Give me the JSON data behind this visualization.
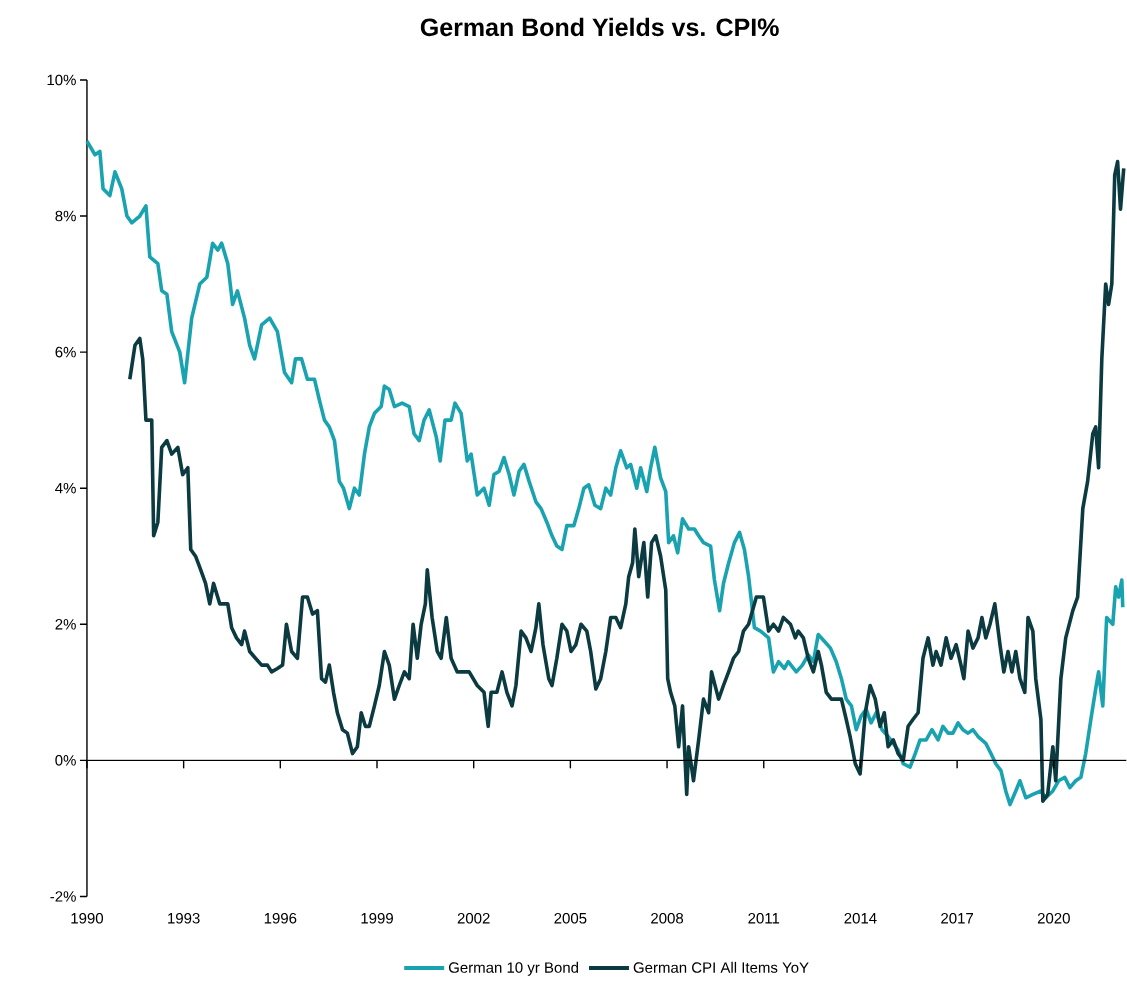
{
  "chart_data": {
    "type": "line",
    "title": "German Bond Yields vs. CPI%",
    "xlim": [
      1990,
      2022.25
    ],
    "ylim": [
      -2,
      10
    ],
    "xticks": [
      1990,
      1993,
      1996,
      1999,
      2002,
      2005,
      2008,
      2011,
      2014,
      2017,
      2020
    ],
    "yticks": [
      {
        "value": -2,
        "label": "-2%"
      },
      {
        "value": 0,
        "label": "0%"
      },
      {
        "value": 2,
        "label": "2%"
      },
      {
        "value": 4,
        "label": "4%"
      },
      {
        "value": 6,
        "label": "6%"
      },
      {
        "value": 8,
        "label": "8%"
      },
      {
        "value": 10,
        "label": "10%"
      }
    ],
    "legend": "bottom",
    "series": [
      {
        "name": "German 10 yr Bond",
        "color": "#19a3b0",
        "x": [
          1990.0,
          1990.25,
          1990.4,
          1990.5,
          1990.71,
          1990.87,
          1991.08,
          1991.24,
          1991.39,
          1991.64,
          1991.83,
          1991.95,
          1992.2,
          1992.32,
          1992.48,
          1992.63,
          1992.88,
          1993.03,
          1993.25,
          1993.5,
          1993.72,
          1993.9,
          1994.06,
          1994.18,
          1994.37,
          1994.52,
          1994.67,
          1994.89,
          1995.05,
          1995.2,
          1995.42,
          1995.67,
          1995.91,
          1996.13,
          1996.35,
          1996.47,
          1996.66,
          1996.84,
          1997.06,
          1997.21,
          1997.37,
          1997.52,
          1997.68,
          1997.83,
          1997.96,
          1998.14,
          1998.3,
          1998.45,
          1998.61,
          1998.76,
          1998.92,
          1999.13,
          1999.23,
          1999.38,
          1999.54,
          1999.78,
          2000.0,
          2000.15,
          2000.31,
          2000.46,
          2000.62,
          2000.84,
          2000.96,
          2001.11,
          2001.3,
          2001.42,
          2001.61,
          2001.8,
          2001.92,
          2002.11,
          2002.32,
          2002.48,
          2002.63,
          2002.79,
          2002.94,
          2003.1,
          2003.25,
          2003.41,
          2003.56,
          2003.72,
          2003.93,
          2004.09,
          2004.27,
          2004.43,
          2004.58,
          2004.74,
          2004.89,
          2005.11,
          2005.26,
          2005.42,
          2005.57,
          2005.76,
          2005.94,
          2006.1,
          2006.25,
          2006.41,
          2006.56,
          2006.75,
          2006.87,
          2007.06,
          2007.18,
          2007.37,
          2007.49,
          2007.62,
          2007.8,
          2007.96,
          2008.05,
          2008.2,
          2008.33,
          2008.48,
          2008.67,
          2008.85,
          2008.98,
          2009.13,
          2009.35,
          2009.47,
          2009.63,
          2009.75,
          2009.91,
          2010.09,
          2010.25,
          2010.4,
          2010.53,
          2010.71,
          2010.9,
          2011.15,
          2011.3,
          2011.46,
          2011.64,
          2011.76,
          2012.01,
          2012.2,
          2012.38,
          2012.54,
          2012.69,
          2012.88,
          2013.07,
          2013.25,
          2013.41,
          2013.56,
          2013.72,
          2013.87,
          2014.02,
          2014.18,
          2014.33,
          2014.49,
          2014.67,
          2014.86,
          2015.02,
          2015.17,
          2015.33,
          2015.54,
          2015.7,
          2015.85,
          2016.04,
          2016.22,
          2016.41,
          2016.56,
          2016.72,
          2016.87,
          2017.03,
          2017.18,
          2017.34,
          2017.49,
          2017.65,
          2017.89,
          2018.05,
          2018.2,
          2018.36,
          2018.51,
          2018.64,
          2018.82,
          2018.95,
          2019.13,
          2019.35,
          2019.6,
          2019.75,
          2019.97,
          2020.15,
          2020.34,
          2020.5,
          2020.68,
          2020.84,
          2020.99,
          2021.15,
          2021.3,
          2021.39,
          2021.52,
          2021.64,
          2021.83,
          2021.92,
          2022.01,
          2022.11,
          2022.14
        ],
        "values": [
          9.1,
          8.9,
          8.95,
          8.4,
          8.3,
          8.65,
          8.4,
          8.0,
          7.9,
          8.0,
          8.15,
          7.4,
          7.3,
          6.9,
          6.85,
          6.3,
          6.0,
          5.55,
          6.5,
          7.0,
          7.1,
          7.6,
          7.5,
          7.6,
          7.3,
          6.7,
          6.9,
          6.5,
          6.1,
          5.9,
          6.4,
          6.5,
          6.3,
          5.7,
          5.55,
          5.9,
          5.9,
          5.6,
          5.6,
          5.3,
          5.0,
          4.9,
          4.7,
          4.1,
          4.0,
          3.7,
          4.0,
          3.9,
          4.5,
          4.9,
          5.1,
          5.2,
          5.5,
          5.45,
          5.2,
          5.25,
          5.2,
          4.8,
          4.7,
          5.0,
          5.15,
          4.75,
          4.4,
          5.0,
          5.0,
          5.25,
          5.1,
          4.4,
          4.5,
          3.9,
          4.0,
          3.75,
          4.2,
          4.25,
          4.45,
          4.2,
          3.9,
          4.25,
          4.35,
          4.1,
          3.8,
          3.7,
          3.5,
          3.3,
          3.15,
          3.1,
          3.45,
          3.45,
          3.7,
          4.0,
          4.05,
          3.75,
          3.7,
          4.0,
          3.9,
          4.3,
          4.55,
          4.3,
          4.35,
          4.0,
          4.3,
          3.95,
          4.3,
          4.6,
          4.15,
          3.95,
          3.2,
          3.3,
          3.05,
          3.55,
          3.4,
          3.4,
          3.3,
          3.2,
          3.15,
          2.65,
          2.2,
          2.6,
          2.9,
          3.2,
          3.35,
          3.1,
          2.7,
          1.95,
          1.9,
          1.8,
          1.3,
          1.45,
          1.35,
          1.45,
          1.3,
          1.4,
          1.55,
          1.45,
          1.85,
          1.75,
          1.65,
          1.45,
          1.2,
          0.9,
          0.8,
          0.45,
          0.65,
          0.75,
          0.55,
          0.7,
          0.45,
          0.35,
          0.25,
          0.15,
          -0.05,
          -0.1,
          0.1,
          0.3,
          0.3,
          0.45,
          0.3,
          0.5,
          0.4,
          0.4,
          0.55,
          0.45,
          0.4,
          0.45,
          0.35,
          0.25,
          0.1,
          -0.05,
          -0.15,
          -0.45,
          -0.65,
          -0.45,
          -0.3,
          -0.55,
          -0.5,
          -0.45,
          -0.55,
          -0.45,
          -0.3,
          -0.25,
          -0.4,
          -0.3,
          -0.25,
          0.1,
          0.6,
          1.05,
          1.3,
          0.8,
          2.1,
          2.0,
          2.55,
          2.4,
          2.65,
          2.25
        ]
      },
      {
        "name": "German CPI All Items YoY",
        "color": "#0b3b40",
        "x": [
          1991.33,
          1991.49,
          1991.64,
          1991.73,
          1991.83,
          1992.01,
          1992.07,
          1992.2,
          1992.32,
          1992.48,
          1992.63,
          1992.82,
          1992.97,
          1993.13,
          1993.22,
          1993.37,
          1993.53,
          1993.68,
          1993.81,
          1993.93,
          1994.12,
          1994.37,
          1994.49,
          1994.64,
          1994.8,
          1994.89,
          1995.05,
          1995.23,
          1995.42,
          1995.6,
          1995.73,
          1995.91,
          1996.07,
          1996.19,
          1996.35,
          1996.53,
          1996.69,
          1996.84,
          1997.0,
          1997.15,
          1997.28,
          1997.4,
          1997.52,
          1997.65,
          1997.77,
          1997.93,
          1998.08,
          1998.24,
          1998.39,
          1998.51,
          1998.64,
          1998.76,
          1998.92,
          1999.07,
          1999.23,
          1999.38,
          1999.54,
          1999.69,
          1999.85,
          2000.0,
          2000.12,
          2000.25,
          2000.37,
          2000.5,
          2000.56,
          2000.71,
          2000.87,
          2000.99,
          2001.15,
          2001.3,
          2001.49,
          2001.7,
          2001.86,
          2002.11,
          2002.32,
          2002.45,
          2002.54,
          2002.72,
          2002.88,
          2003.03,
          2003.19,
          2003.31,
          2003.47,
          2003.62,
          2003.78,
          2003.93,
          2004.02,
          2004.15,
          2004.33,
          2004.43,
          2004.58,
          2004.74,
          2004.89,
          2005.02,
          2005.17,
          2005.33,
          2005.51,
          2005.63,
          2005.79,
          2005.94,
          2006.1,
          2006.25,
          2006.41,
          2006.56,
          2006.72,
          2006.81,
          2006.93,
          2007.0,
          2007.12,
          2007.28,
          2007.4,
          2007.52,
          2007.65,
          2007.8,
          2007.96,
          2008.02,
          2008.11,
          2008.24,
          2008.36,
          2008.48,
          2008.61,
          2008.67,
          2008.82,
          2008.98,
          2009.13,
          2009.29,
          2009.38,
          2009.6,
          2009.75,
          2009.91,
          2010.06,
          2010.22,
          2010.37,
          2010.53,
          2010.65,
          2010.77,
          2010.99,
          2011.15,
          2011.3,
          2011.46,
          2011.61,
          2011.83,
          2011.98,
          2012.07,
          2012.23,
          2012.38,
          2012.54,
          2012.69,
          2012.79,
          2012.94,
          2013.1,
          2013.25,
          2013.41,
          2013.56,
          2013.68,
          2013.84,
          2013.99,
          2014.15,
          2014.3,
          2014.46,
          2014.61,
          2014.74,
          2014.86,
          2015.02,
          2015.17,
          2015.33,
          2015.48,
          2015.63,
          2015.79,
          2015.94,
          2016.1,
          2016.25,
          2016.35,
          2016.5,
          2016.66,
          2016.81,
          2016.97,
          2017.12,
          2017.21,
          2017.34,
          2017.49,
          2017.65,
          2017.77,
          2017.89,
          2018.02,
          2018.17,
          2018.33,
          2018.45,
          2018.58,
          2018.7,
          2018.82,
          2018.95,
          2019.1,
          2019.2,
          2019.35,
          2019.44,
          2019.6,
          2019.66,
          2019.81,
          2019.97,
          2020.06,
          2020.22,
          2020.37,
          2020.59,
          2020.74,
          2020.9,
          2021.05,
          2021.21,
          2021.3,
          2021.39,
          2021.49,
          2021.61,
          2021.7,
          2021.8,
          2021.89,
          2021.98,
          2022.07,
          2022.17
        ],
        "values": [
          5.6,
          6.1,
          6.2,
          5.9,
          5.0,
          5.0,
          3.3,
          3.5,
          4.6,
          4.7,
          4.5,
          4.6,
          4.2,
          4.3,
          3.1,
          3.0,
          2.8,
          2.6,
          2.3,
          2.6,
          2.3,
          2.3,
          1.95,
          1.8,
          1.7,
          1.9,
          1.6,
          1.5,
          1.4,
          1.4,
          1.3,
          1.35,
          1.4,
          2.0,
          1.6,
          1.5,
          2.4,
          2.4,
          2.15,
          2.2,
          1.2,
          1.15,
          1.4,
          1.0,
          0.7,
          0.45,
          0.4,
          0.1,
          0.2,
          0.7,
          0.5,
          0.5,
          0.8,
          1.1,
          1.6,
          1.4,
          0.9,
          1.1,
          1.3,
          1.2,
          2.0,
          1.5,
          2.0,
          2.3,
          2.8,
          2.1,
          1.6,
          1.5,
          2.1,
          1.5,
          1.3,
          1.3,
          1.3,
          1.1,
          1.0,
          0.5,
          1.0,
          1.0,
          1.3,
          1.0,
          0.8,
          1.1,
          1.9,
          1.8,
          1.6,
          1.95,
          2.3,
          1.7,
          1.2,
          1.1,
          1.5,
          2.0,
          1.9,
          1.6,
          1.7,
          2.0,
          1.9,
          1.6,
          1.05,
          1.2,
          1.6,
          2.1,
          2.1,
          1.95,
          2.3,
          2.7,
          2.9,
          3.4,
          2.7,
          3.2,
          2.4,
          3.2,
          3.3,
          3.0,
          2.5,
          1.2,
          1.0,
          0.8,
          0.2,
          0.8,
          -0.5,
          0.2,
          -0.3,
          0.3,
          0.9,
          0.7,
          1.3,
          0.9,
          1.1,
          1.3,
          1.5,
          1.6,
          1.9,
          2.0,
          2.2,
          2.4,
          2.4,
          1.9,
          2.0,
          1.9,
          2.1,
          2.0,
          1.8,
          1.9,
          1.8,
          1.5,
          1.3,
          1.6,
          1.4,
          1.0,
          0.9,
          0.9,
          0.9,
          0.6,
          0.35,
          -0.05,
          -0.2,
          0.7,
          1.1,
          0.9,
          0.5,
          0.7,
          0.2,
          0.3,
          0.1,
          0.0,
          0.5,
          0.6,
          0.7,
          1.5,
          1.8,
          1.4,
          1.6,
          1.4,
          1.8,
          1.5,
          1.7,
          1.4,
          1.2,
          1.9,
          1.65,
          1.8,
          2.1,
          1.8,
          2.0,
          2.3,
          1.7,
          1.3,
          1.6,
          1.3,
          1.6,
          1.2,
          1.0,
          2.1,
          1.9,
          1.2,
          0.6,
          -0.6,
          -0.5,
          0.2,
          -0.3,
          1.2,
          1.8,
          2.2,
          2.4,
          3.7,
          4.1,
          4.8,
          4.9,
          4.3,
          5.9,
          7.0,
          6.7,
          7.0,
          8.6,
          8.8,
          8.1,
          8.7
        ]
      }
    ]
  }
}
